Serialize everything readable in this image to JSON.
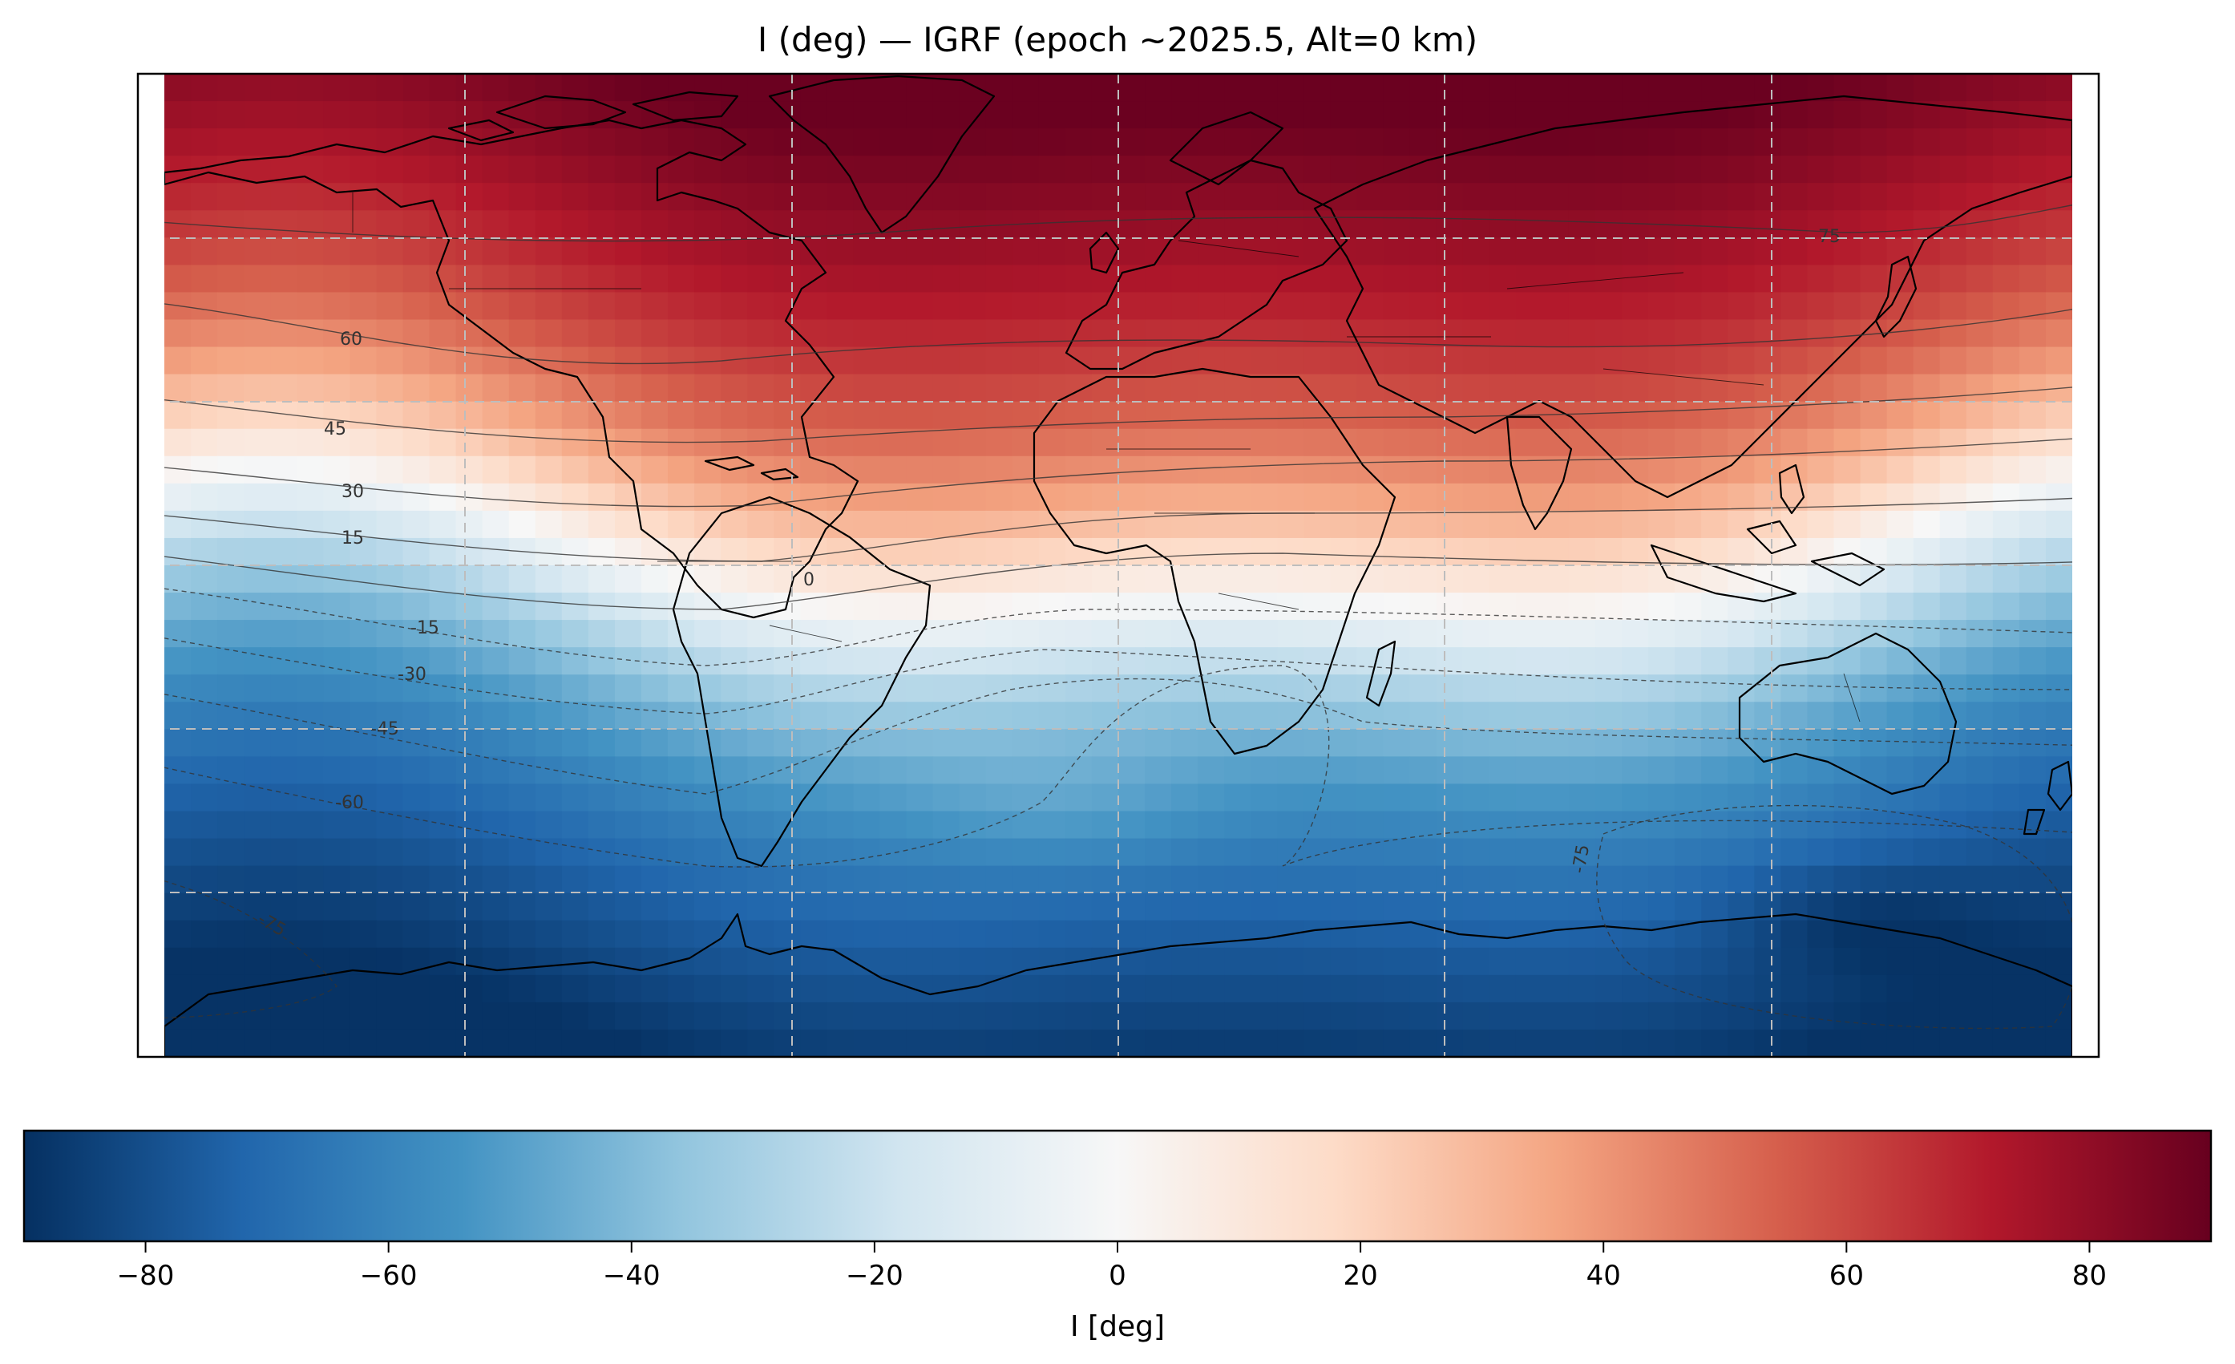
{
  "title": "I (deg) — IGRF (epoch ~2025.5, Alt=0 km)",
  "colorbar": {
    "label": "I [deg]",
    "ticks": [
      -80,
      -60,
      -40,
      -20,
      0,
      20,
      40,
      60,
      80
    ],
    "tick_labels": [
      "−80",
      "−60",
      "−40",
      "−20",
      "0",
      "20",
      "40",
      "60",
      "80"
    ],
    "range": [
      -90,
      90
    ],
    "colormap": "RdBu_r",
    "stops": [
      "#053061",
      "#2166ac",
      "#4393c3",
      "#92c5de",
      "#d1e5f0",
      "#f7f7f7",
      "#fddbc7",
      "#f4a582",
      "#d6604d",
      "#b2182b",
      "#67001f"
    ]
  },
  "map": {
    "projection": "PlateCarree",
    "grid": true,
    "field": "magnetic inclination",
    "contour_labels": [
      "75",
      "60",
      "45",
      "30",
      "15",
      "0",
      "-15",
      "-30",
      "-45",
      "-60",
      "-75",
      "-75"
    ]
  }
}
